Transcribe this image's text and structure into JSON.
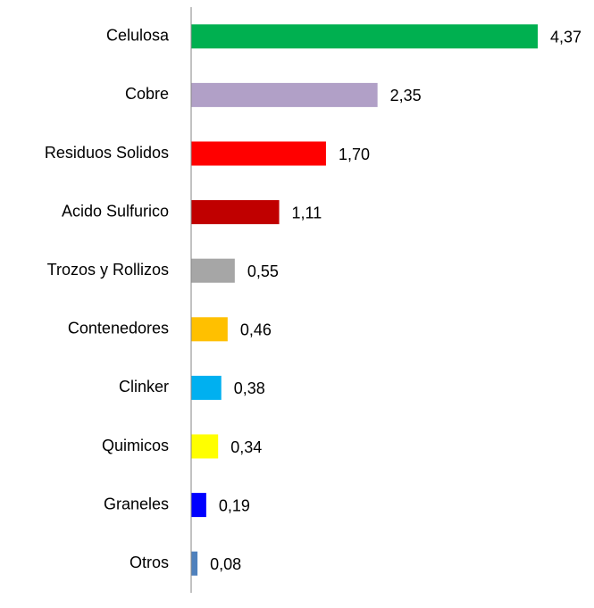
{
  "chart_data": {
    "type": "bar",
    "orientation": "horizontal",
    "categories": [
      "Celulosa",
      "Cobre",
      "Residuos Solidos",
      "Acido Sulfurico",
      "Trozos y Rollizos",
      "Contenedores",
      "Clinker",
      "Quimicos",
      "Graneles",
      "Otros"
    ],
    "values": [
      4.37,
      2.35,
      1.7,
      1.11,
      0.55,
      0.46,
      0.38,
      0.34,
      0.19,
      0.08
    ],
    "value_labels": [
      "4,37",
      "2,35",
      "1,70",
      "1,11",
      "0,55",
      "0,46",
      "0,38",
      "0,34",
      "0,19",
      "0,08"
    ],
    "colors": [
      "#00b050",
      "#b1a0c7",
      "#ff0000",
      "#c00000",
      "#a6a6a6",
      "#ffc000",
      "#00b0f0",
      "#ffff00",
      "#0000ff",
      "#4f81bd"
    ]
  }
}
